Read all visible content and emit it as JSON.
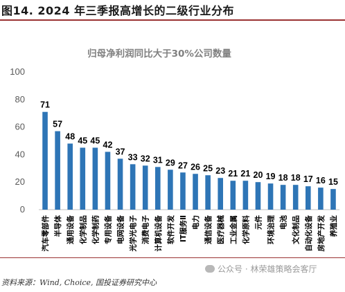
{
  "figure": {
    "title": "图14. 2024 年三季报高增长的二级行业分布",
    "source": "资料来源：Wind, Choice, 国投证券研究中心",
    "watermark": "公众号 · 林荣雄策略会客厅"
  },
  "chart_data": {
    "type": "bar",
    "title": "归母净利润同比大于30%公司数量",
    "categories": [
      "汽车零部件",
      "半导体",
      "通用设备",
      "化学制品",
      "化学制药",
      "专用设备",
      "电网设备",
      "光学光电子",
      "消费电子",
      "计算机设备",
      "软件开发",
      "IT服务Ⅱ",
      "电力",
      "通信设备",
      "医疗器械",
      "工业金属",
      "化学原料",
      "元件",
      "环境治理",
      "电池",
      "文化制品",
      "自动化设备",
      "房地产开发",
      "养殖业"
    ],
    "values": [
      71,
      57,
      48,
      45,
      45,
      42,
      37,
      33,
      32,
      31,
      29,
      27,
      26,
      25,
      23,
      21,
      21,
      20,
      19,
      18,
      18,
      17,
      16,
      15
    ],
    "ylim": [
      0,
      100
    ],
    "yticks": [
      0,
      20,
      40,
      60,
      80,
      100
    ],
    "xlabel": "",
    "ylabel": "",
    "grid": false,
    "bar_color": "#2e75b6",
    "data_labels": true
  }
}
